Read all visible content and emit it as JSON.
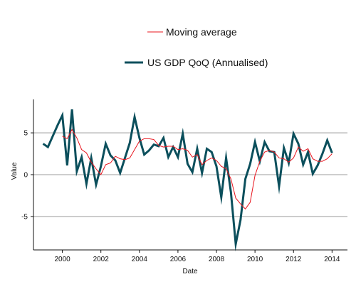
{
  "chart_data": {
    "type": "line",
    "title": "",
    "xlabel": "Date",
    "ylabel": "Value",
    "xlim": [
      1998.5,
      2014.8
    ],
    "ylim": [
      -9,
      9
    ],
    "x_ticks": [
      2000,
      2002,
      2004,
      2006,
      2008,
      2010,
      2012,
      2014
    ],
    "x_tick_labels": [
      "2000",
      "2002",
      "2004",
      "2006",
      "2008",
      "2010",
      "2012",
      "2014"
    ],
    "y_ticks": [
      -5,
      0,
      5
    ],
    "y_tick_labels": [
      "-5",
      "0",
      "5"
    ],
    "grid": {
      "horizontal": true,
      "vertical": false
    },
    "legend_position": "top-center",
    "series": [
      {
        "name": "US GDP QoQ (Annualised)",
        "color": "#0b4f5c",
        "points": [
          [
            1999.0,
            3.7
          ],
          [
            1999.25,
            3.3
          ],
          [
            1999.5,
            4.6
          ],
          [
            1999.75,
            5.9
          ],
          [
            2000.0,
            7.1
          ],
          [
            2000.25,
            1.1
          ],
          [
            2000.5,
            7.8
          ],
          [
            2000.75,
            0.4
          ],
          [
            2001.0,
            2.1
          ],
          [
            2001.25,
            -1.1
          ],
          [
            2001.5,
            2.0
          ],
          [
            2001.75,
            -1.2
          ],
          [
            2002.0,
            1.0
          ],
          [
            2002.25,
            3.7
          ],
          [
            2002.5,
            2.3
          ],
          [
            2002.75,
            1.7
          ],
          [
            2003.0,
            0.2
          ],
          [
            2003.25,
            2.0
          ],
          [
            2003.5,
            3.8
          ],
          [
            2003.75,
            6.9
          ],
          [
            2004.0,
            4.4
          ],
          [
            2004.25,
            2.4
          ],
          [
            2004.5,
            2.9
          ],
          [
            2004.75,
            3.6
          ],
          [
            2005.0,
            3.4
          ],
          [
            2005.25,
            4.4
          ],
          [
            2005.5,
            2.1
          ],
          [
            2005.75,
            3.3
          ],
          [
            2006.0,
            2.1
          ],
          [
            2006.25,
            4.9
          ],
          [
            2006.5,
            1.3
          ],
          [
            2006.75,
            0.3
          ],
          [
            2007.0,
            3.1
          ],
          [
            2007.25,
            0.2
          ],
          [
            2007.5,
            3.1
          ],
          [
            2007.75,
            2.7
          ],
          [
            2008.0,
            1.0
          ],
          [
            2008.25,
            -2.7
          ],
          [
            2008.5,
            2.0
          ],
          [
            2008.75,
            -2.1
          ],
          [
            2009.0,
            -8.3
          ],
          [
            2009.25,
            -5.4
          ],
          [
            2009.5,
            -0.5
          ],
          [
            2009.75,
            1.3
          ],
          [
            2010.0,
            3.9
          ],
          [
            2010.25,
            1.6
          ],
          [
            2010.5,
            3.9
          ],
          [
            2010.75,
            2.8
          ],
          [
            2011.0,
            2.7
          ],
          [
            2011.25,
            -1.4
          ],
          [
            2011.5,
            3.2
          ],
          [
            2011.75,
            1.4
          ],
          [
            2012.0,
            4.9
          ],
          [
            2012.25,
            3.7
          ],
          [
            2012.5,
            1.2
          ],
          [
            2012.75,
            2.7
          ],
          [
            2013.0,
            0.1
          ],
          [
            2013.25,
            1.1
          ],
          [
            2013.5,
            2.5
          ],
          [
            2013.75,
            4.1
          ],
          [
            2014.0,
            2.6
          ]
        ]
      },
      {
        "name": "Moving average",
        "color": "#e8141d",
        "points": [
          [
            2000.0,
            4.6
          ],
          [
            2000.25,
            4.3
          ],
          [
            2000.5,
            5.4
          ],
          [
            2000.75,
            4.4
          ],
          [
            2001.0,
            3.0
          ],
          [
            2001.25,
            2.6
          ],
          [
            2001.5,
            1.5
          ],
          [
            2001.75,
            0.7
          ],
          [
            2002.0,
            0.0
          ],
          [
            2002.25,
            1.2
          ],
          [
            2002.5,
            1.4
          ],
          [
            2002.75,
            2.2
          ],
          [
            2003.0,
            1.9
          ],
          [
            2003.25,
            1.8
          ],
          [
            2003.5,
            2.0
          ],
          [
            2003.75,
            3.0
          ],
          [
            2004.0,
            4.0
          ],
          [
            2004.25,
            4.3
          ],
          [
            2004.5,
            4.3
          ],
          [
            2004.75,
            4.2
          ],
          [
            2005.0,
            3.5
          ],
          [
            2005.25,
            3.3
          ],
          [
            2005.5,
            3.4
          ],
          [
            2005.75,
            3.4
          ],
          [
            2006.0,
            3.0
          ],
          [
            2006.25,
            3.1
          ],
          [
            2006.5,
            2.9
          ],
          [
            2006.75,
            2.1
          ],
          [
            2007.0,
            2.4
          ],
          [
            2007.25,
            1.2
          ],
          [
            2007.5,
            1.7
          ],
          [
            2007.75,
            2.0
          ],
          [
            2008.0,
            1.7
          ],
          [
            2008.25,
            1.0
          ],
          [
            2008.5,
            0.7
          ],
          [
            2008.75,
            -0.5
          ],
          [
            2009.0,
            -2.8
          ],
          [
            2009.25,
            -3.5
          ],
          [
            2009.5,
            -4.1
          ],
          [
            2009.75,
            -3.3
          ],
          [
            2010.0,
            -0.1
          ],
          [
            2010.25,
            1.6
          ],
          [
            2010.5,
            2.7
          ],
          [
            2010.75,
            2.9
          ],
          [
            2011.0,
            2.7
          ],
          [
            2011.25,
            2.0
          ],
          [
            2011.5,
            1.9
          ],
          [
            2011.75,
            1.5
          ],
          [
            2012.0,
            2.0
          ],
          [
            2012.25,
            3.3
          ],
          [
            2012.5,
            2.8
          ],
          [
            2012.75,
            3.1
          ],
          [
            2013.0,
            1.9
          ],
          [
            2013.25,
            1.6
          ],
          [
            2013.5,
            1.6
          ],
          [
            2013.75,
            1.9
          ],
          [
            2014.0,
            2.5
          ]
        ]
      }
    ]
  }
}
